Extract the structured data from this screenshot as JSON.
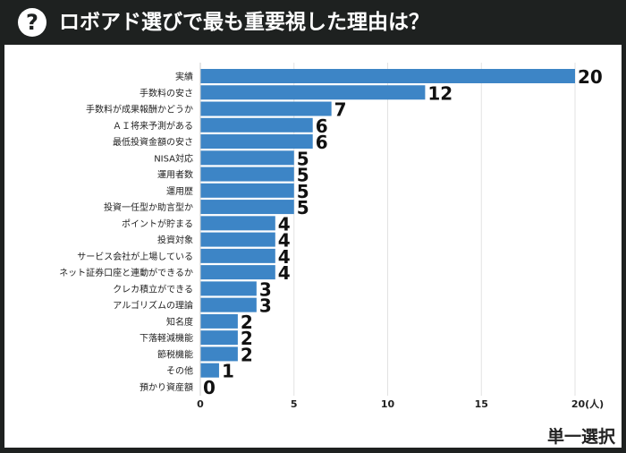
{
  "header": {
    "icon": "question-circle-icon",
    "title": "ロボアド選びで最も重要視した理由は？"
  },
  "footer_note": "単一選択",
  "chart_data": {
    "type": "bar",
    "orientation": "horizontal",
    "categories": [
      "実績",
      "手数料の安さ",
      "手数料が成果報酬かどうか",
      "ＡＩ将来予測がある",
      "最低投資金額の安さ",
      "NISA対応",
      "運用者数",
      "運用歴",
      "投資一任型か助言型か",
      "ポイントが貯まる",
      "投資対象",
      "サービス会社が上場している",
      "ネット証券口座と連動ができるか",
      "クレカ積立ができる",
      "アルゴリズムの理論",
      "知名度",
      "下落軽減機能",
      "節税機能",
      "その他",
      "預かり資産額"
    ],
    "values": [
      20,
      12,
      7,
      6,
      6,
      5,
      5,
      5,
      5,
      4,
      4,
      4,
      4,
      3,
      3,
      2,
      2,
      2,
      1,
      0
    ],
    "xlim": [
      0,
      20
    ],
    "xticks": [
      "0",
      "5",
      "10",
      "15",
      "20(人)"
    ],
    "xtick_values": [
      0,
      5,
      10,
      15,
      20
    ],
    "grid": true,
    "bar_color": "#3d85c6"
  }
}
